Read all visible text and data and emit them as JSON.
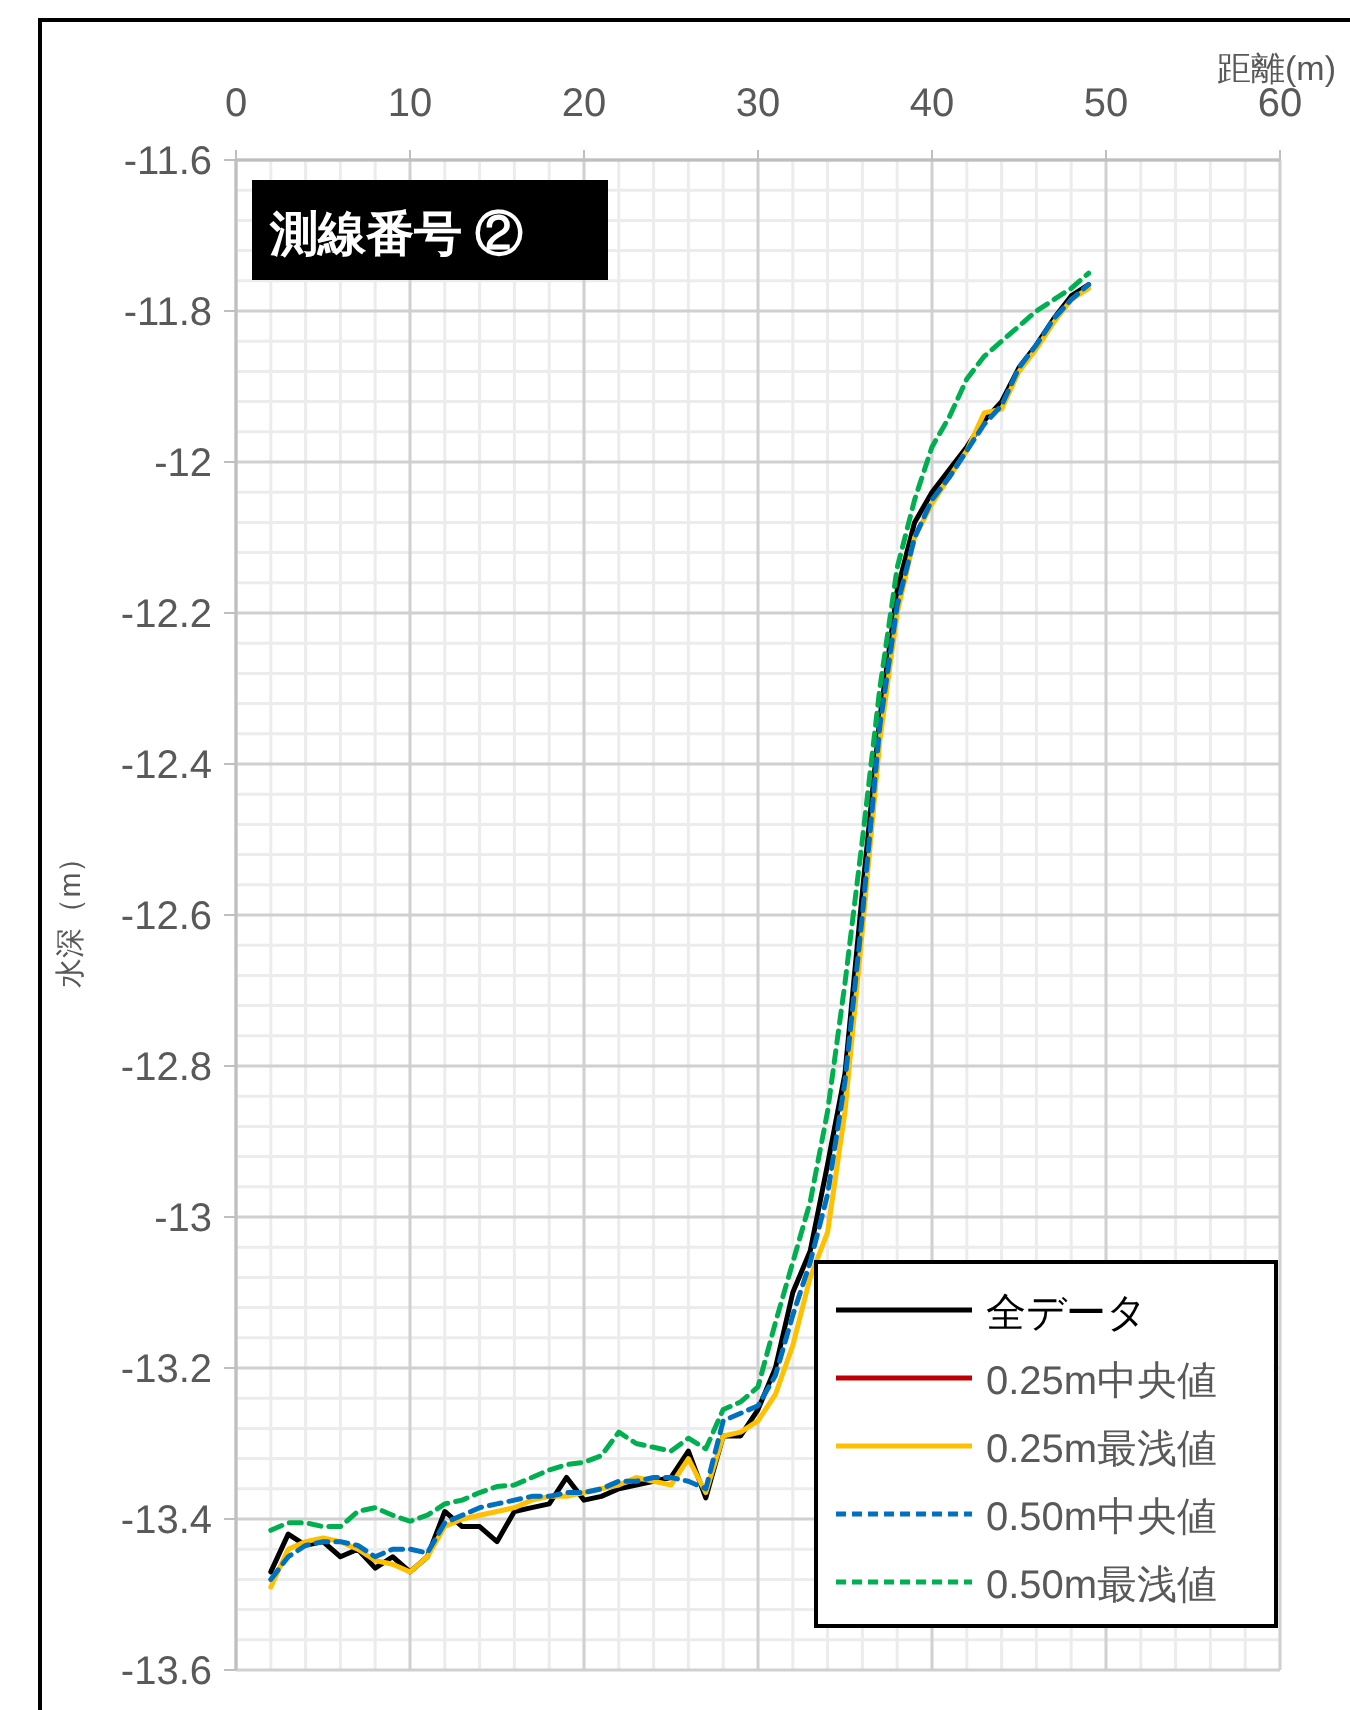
{
  "chart_data": {
    "type": "line",
    "title": "測線番号 ②",
    "xlabel": "距離(m)",
    "ylabel": "水深（m）",
    "x": [
      2,
      3,
      4,
      5,
      6,
      7,
      8,
      9,
      10,
      11,
      12,
      13,
      14,
      15,
      16,
      17,
      18,
      19,
      20,
      21,
      22,
      23,
      24,
      25,
      26,
      27,
      28,
      29,
      30,
      31,
      32,
      33,
      34,
      35,
      36,
      37,
      38,
      39,
      40,
      41,
      42,
      43,
      44,
      45,
      46,
      47,
      48,
      49
    ],
    "xlim": [
      0,
      60
    ],
    "xticks": [
      0,
      10,
      20,
      30,
      40,
      50,
      60
    ],
    "ylim": [
      -13.6,
      -11.6
    ],
    "yticks": [
      -13.6,
      -13.4,
      -13.2,
      -13,
      -12.8,
      -12.6,
      -12.4,
      -12.2,
      -12,
      -11.8,
      -11.6
    ],
    "grid": true,
    "legend": "bottom right",
    "series": [
      {
        "name": "全データ",
        "color": "#000000",
        "line_style": "solid",
        "values": [
          -13.47,
          -13.42,
          -13.435,
          -13.43,
          -13.45,
          -13.44,
          -13.465,
          -13.45,
          -13.47,
          -13.45,
          -13.39,
          -13.41,
          -13.41,
          -13.43,
          -13.39,
          -13.385,
          -13.38,
          -13.345,
          -13.375,
          -13.37,
          -13.36,
          -13.355,
          -13.35,
          -13.345,
          -13.31,
          -13.372,
          -13.29,
          -13.29,
          -13.255,
          -13.2,
          -13.1,
          -13.045,
          -12.93,
          -12.81,
          -12.57,
          -12.34,
          -12.17,
          -12.08,
          -12.04,
          -12.01,
          -11.98,
          -11.945,
          -11.92,
          -11.875,
          -11.845,
          -11.81,
          -11.78,
          -11.765
        ]
      },
      {
        "name": "0.25m中央値",
        "color": "#c00000",
        "line_style": "solid",
        "values": [
          null,
          null,
          null,
          null,
          null,
          null,
          null,
          null,
          null,
          null,
          null,
          null,
          null,
          null,
          null,
          null,
          null,
          null,
          null,
          null,
          null,
          null,
          null,
          null,
          null,
          null,
          null,
          null,
          null,
          null,
          null,
          null,
          null,
          null,
          null,
          null,
          null,
          null,
          null,
          null,
          null,
          null,
          null,
          null,
          null,
          null,
          null,
          null
        ]
      },
      {
        "name": "0.25m最浅値",
        "color": "#ffc000",
        "line_style": "solid",
        "values": [
          -13.49,
          -13.44,
          -13.43,
          -13.425,
          -13.43,
          -13.44,
          -13.455,
          -13.46,
          -13.47,
          -13.45,
          -13.41,
          -13.4,
          -13.395,
          -13.39,
          -13.385,
          -13.375,
          -13.37,
          -13.37,
          -13.365,
          -13.36,
          -13.355,
          -13.345,
          -13.35,
          -13.355,
          -13.32,
          -13.365,
          -13.29,
          -13.285,
          -13.27,
          -13.235,
          -13.17,
          -13.08,
          -13.02,
          -12.86,
          -12.62,
          -12.37,
          -12.2,
          -12.1,
          -12.055,
          -12.02,
          -11.985,
          -11.935,
          -11.93,
          -11.88,
          -11.85,
          -11.815,
          -11.785,
          -11.77
        ]
      },
      {
        "name": "0.50m中央値",
        "color": "#0070c0",
        "line_style": "dashed",
        "values": [
          -13.48,
          -13.45,
          -13.435,
          -13.43,
          -13.43,
          -13.435,
          -13.45,
          -13.44,
          -13.44,
          -13.445,
          -13.405,
          -13.395,
          -13.385,
          -13.38,
          -13.375,
          -13.37,
          -13.37,
          -13.365,
          -13.365,
          -13.36,
          -13.35,
          -13.35,
          -13.345,
          -13.345,
          -13.35,
          -13.36,
          -13.27,
          -13.26,
          -13.25,
          -13.21,
          -13.13,
          -13.06,
          -12.97,
          -12.82,
          -12.6,
          -12.35,
          -12.19,
          -12.1,
          -12.05,
          -12.02,
          -11.985,
          -11.95,
          -11.925,
          -11.875,
          -11.845,
          -11.81,
          -11.785,
          -11.765
        ]
      },
      {
        "name": "0.50m最浅値",
        "color": "#00b050",
        "line_style": "dashed",
        "values": [
          -13.415,
          -13.405,
          -13.405,
          -13.41,
          -13.41,
          -13.39,
          -13.385,
          -13.395,
          -13.403,
          -13.395,
          -13.38,
          -13.375,
          -13.365,
          -13.357,
          -13.355,
          -13.345,
          -13.335,
          -13.328,
          -13.325,
          -13.316,
          -13.285,
          -13.3,
          -13.305,
          -13.31,
          -13.293,
          -13.307,
          -13.255,
          -13.245,
          -13.225,
          -13.14,
          -13.06,
          -12.98,
          -12.86,
          -12.69,
          -12.5,
          -12.3,
          -12.14,
          -12.05,
          -11.98,
          -11.94,
          -11.89,
          -11.86,
          -11.84,
          -11.82,
          -11.8,
          -11.785,
          -11.77,
          -11.75
        ]
      }
    ]
  }
}
